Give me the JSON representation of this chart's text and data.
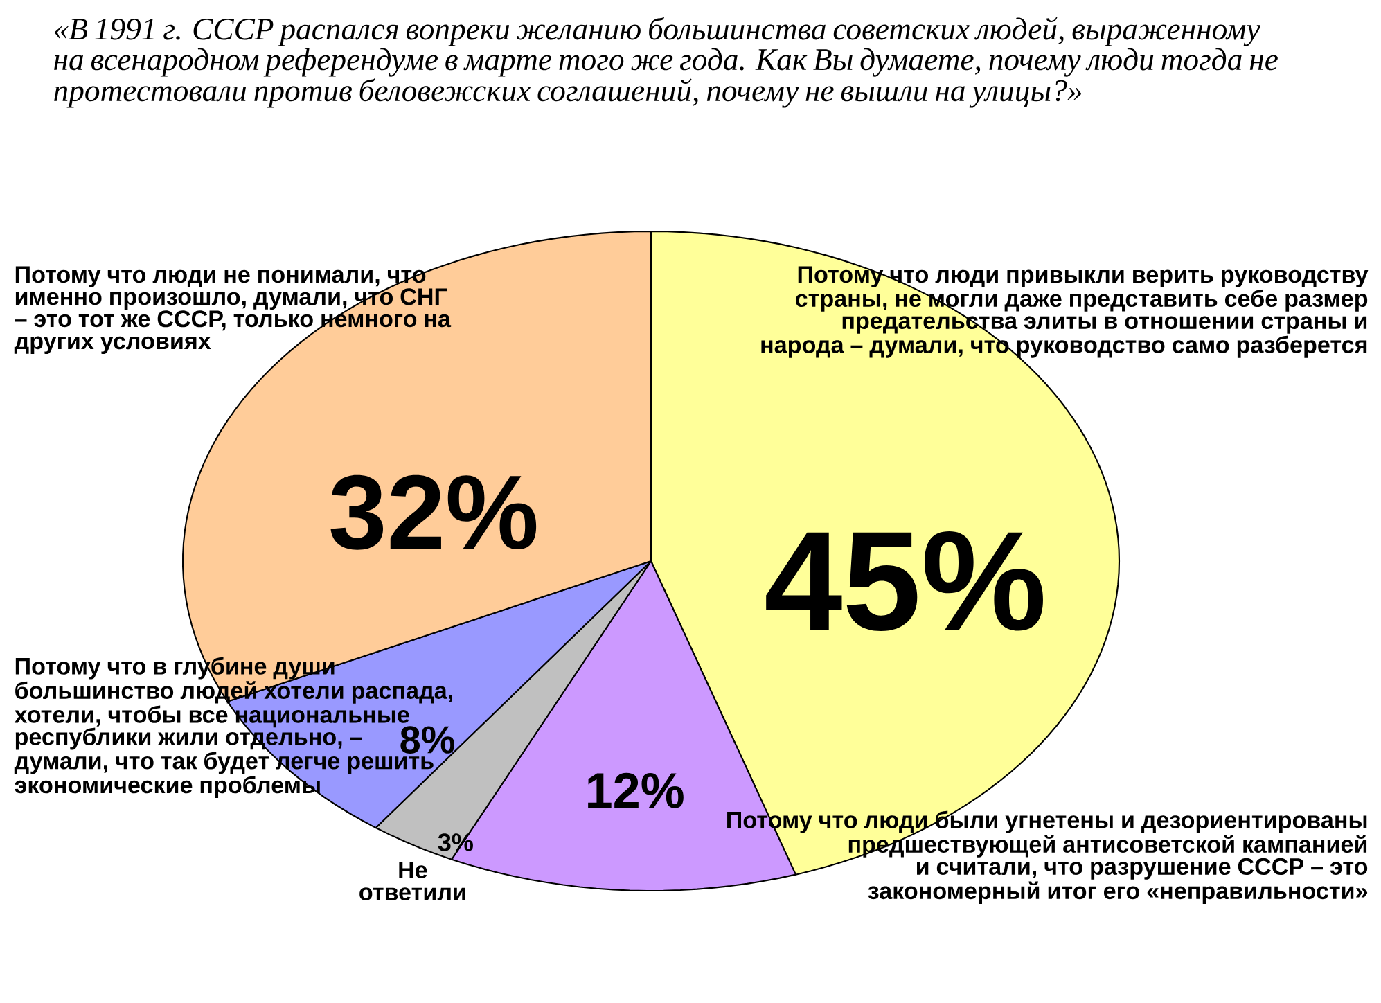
{
  "chart_data": {
    "type": "pie",
    "title": "«В 1991 г. СССР распался вопреки желанию большинства советских людей, выраженному на всенародном референдуме в марте того же года. Как Вы думаете, почему люди тогда не протестовали против беловежских соглашений, почему не вышли на улицы?»",
    "categories": [
      "Потому что люди привыкли верить руководству страны, не могли даже представить себе размер предательства элиты в отношении страны и народа – думали, что руководство само разберется",
      "Потому что люди были угнетены и дезориентированы предшествующей антисоветской кампанией и считали, что разрушение СССР – это закономерный итог его «неправильности»",
      "Не ответили",
      "Потому что в глубине души большинство людей хотели распада, хотели, чтобы все национальные республики жили отдельно, – думали, что так будет легче решить экономические проблемы",
      "Потому что люди не понимали, что именно произошло, думали, что СНГ – это тот же СССР, только немного на других условиях"
    ],
    "values": [
      45,
      12,
      3,
      8,
      32
    ],
    "value_labels": [
      "45%",
      "12%",
      "3%",
      "8%",
      "32%"
    ],
    "colors": [
      "#ffff99",
      "#cc99ff",
      "#c0c0c0",
      "#9999ff",
      "#ffcc99"
    ]
  }
}
